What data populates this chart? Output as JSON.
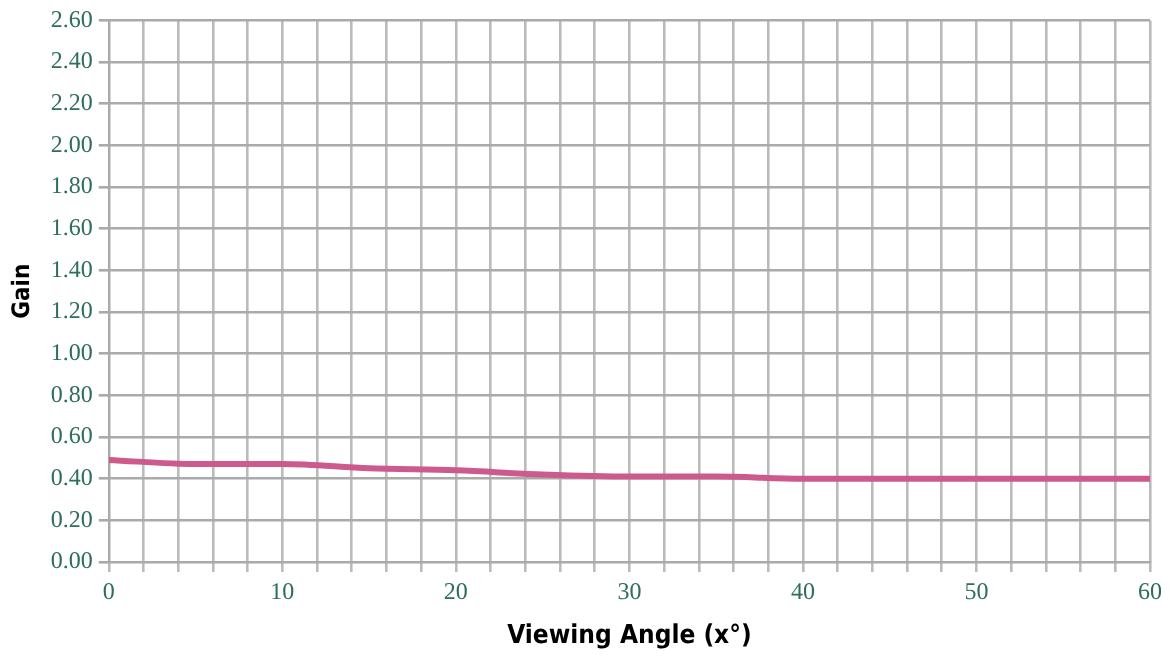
{
  "chart_data": {
    "type": "line",
    "xlabel": "Viewing Angle (x°)",
    "ylabel": "Gain",
    "x": [
      0,
      5,
      10,
      15,
      20,
      25,
      30,
      35,
      40,
      45,
      50,
      55,
      60
    ],
    "series": [
      {
        "color": "#cc5a8c",
        "values": [
          0.49,
          0.47,
          0.47,
          0.45,
          0.44,
          0.42,
          0.41,
          0.41,
          0.4,
          0.4,
          0.4,
          0.4,
          0.4
        ]
      }
    ],
    "xlim": [
      0,
      60
    ],
    "xticks": [
      0,
      {
        "value": 2,
        "label": null
      },
      {
        "value": 4,
        "label": null
      },
      {
        "value": 6,
        "label": null
      },
      {
        "value": 8,
        "label": null
      },
      10,
      {
        "value": 12,
        "label": null
      },
      {
        "value": 14,
        "label": null
      },
      {
        "value": 16,
        "label": null
      },
      {
        "value": 18,
        "label": null
      },
      20,
      {
        "value": 22,
        "label": null
      },
      {
        "value": 24,
        "label": null
      },
      {
        "value": 26,
        "label": null
      },
      {
        "value": 28,
        "label": null
      },
      30,
      {
        "value": 32,
        "label": null
      },
      {
        "value": 34,
        "label": null
      },
      {
        "value": 36,
        "label": null
      },
      {
        "value": 38,
        "label": null
      },
      40,
      {
        "value": 42,
        "label": null
      },
      {
        "value": 44,
        "label": null
      },
      {
        "value": 46,
        "label": null
      },
      {
        "value": 48,
        "label": null
      },
      50,
      {
        "value": 52,
        "label": null
      },
      {
        "value": 54,
        "label": null
      },
      {
        "value": 56,
        "label": null
      },
      {
        "value": 58,
        "label": null
      },
      60
    ],
    "ylim": [
      0,
      2.6
    ],
    "yticks": [
      {
        "value": 0,
        "label": "0.00"
      },
      {
        "value": 0.2,
        "label": "0.20"
      },
      {
        "value": 0.4,
        "label": "0.40"
      },
      {
        "value": 0.6,
        "label": "0.60"
      },
      {
        "value": 0.8,
        "label": "0.80"
      },
      {
        "value": 1,
        "label": "1.00"
      },
      {
        "value": 1.2,
        "label": "1.20"
      },
      {
        "value": 1.4,
        "label": "1.40"
      },
      {
        "value": 1.6,
        "label": "1.60"
      },
      {
        "value": 1.8,
        "label": "1.80"
      },
      {
        "value": 2,
        "label": "2.00"
      },
      {
        "value": 2.2,
        "label": "2.20"
      },
      {
        "value": 2.4,
        "label": "2.40"
      },
      {
        "value": 2.6,
        "label": "2.60"
      }
    ],
    "grid": true,
    "legend": false,
    "marker": "none",
    "line_style": "solid"
  }
}
